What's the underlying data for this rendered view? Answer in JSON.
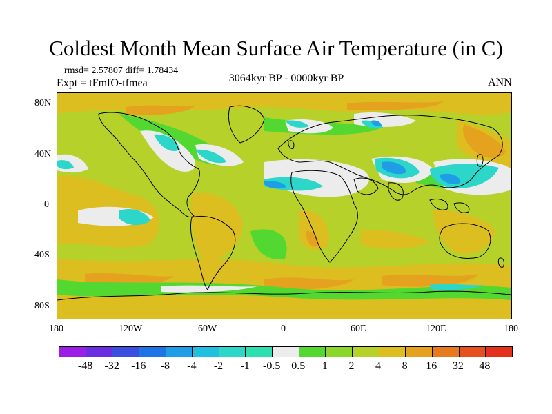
{
  "title": "Coldest Month Mean Surface Air Temperature (in C)",
  "stats": "rmsd= 2.57807 diff= 1.78434",
  "expt": "Expt = tFmfO-tfmea",
  "period": "3064kyr BP - 0000kyr BP",
  "season": "ANN",
  "y_axis_labels": [
    "80N",
    "40N",
    "0",
    "40S",
    "80S"
  ],
  "x_axis_labels": [
    "180",
    "120W",
    "60W",
    "0",
    "60E",
    "120E",
    "180"
  ],
  "colorbar": {
    "labels": [
      "-48",
      "-32",
      "-16",
      "-8",
      "-4",
      "-2",
      "-1",
      "-0.5",
      "0.5",
      "1",
      "2",
      "4",
      "8",
      "16",
      "32",
      "48"
    ],
    "colors": [
      "#9a1ee6",
      "#6a2ee0",
      "#3a4ee0",
      "#1e74e6",
      "#1e9ee6",
      "#22c0e0",
      "#2cd6c8",
      "#2ee0b0",
      "#ececec",
      "#52d830",
      "#8ad62a",
      "#b6d22a",
      "#dcbe20",
      "#e4a21e",
      "#e67a1e",
      "#e6501e",
      "#e6301e"
    ]
  },
  "colors": {
    "background_field": "#b6d22a",
    "warm_field": "#dcbe20",
    "near_zero": "#ececec",
    "cool_field": "#2cd6c8"
  }
}
